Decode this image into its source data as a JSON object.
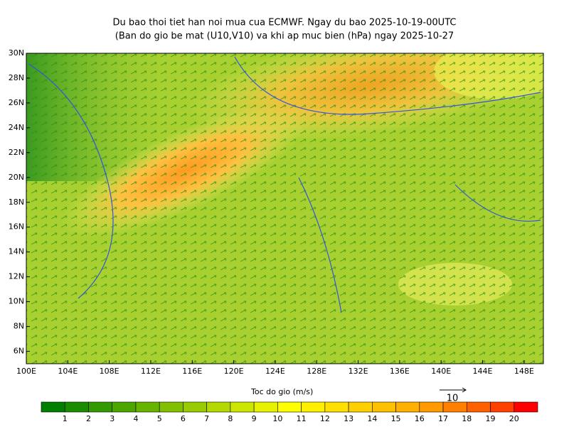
{
  "title": [
    "Du bao thoi tiet han noi mua cua ECMWF. Ngay du bao 2025-10-19-00UTC",
    "(Ban do gio be mat (U10,V10) va khi ap muc bien (hPa) ngay 2025-10-27"
  ],
  "map": {
    "lon_range": [
      100,
      150
    ],
    "lat_range": [
      5,
      30
    ],
    "xticks": [
      {
        "value": 100,
        "label": "100E"
      },
      {
        "value": 104,
        "label": "104E"
      },
      {
        "value": 108,
        "label": "108E"
      },
      {
        "value": 112,
        "label": "112E"
      },
      {
        "value": 116,
        "label": "116E"
      },
      {
        "value": 120,
        "label": "120E"
      },
      {
        "value": 124,
        "label": "124E"
      },
      {
        "value": 128,
        "label": "128E"
      },
      {
        "value": 132,
        "label": "132E"
      },
      {
        "value": 136,
        "label": "136E"
      },
      {
        "value": 140,
        "label": "140E"
      },
      {
        "value": 144,
        "label": "144E"
      },
      {
        "value": 148,
        "label": "148E"
      }
    ],
    "yticks": [
      {
        "value": 6,
        "label": "6N"
      },
      {
        "value": 8,
        "label": "8N"
      },
      {
        "value": 10,
        "label": "10N"
      },
      {
        "value": 12,
        "label": "12N"
      },
      {
        "value": 14,
        "label": "14N"
      },
      {
        "value": 16,
        "label": "16N"
      },
      {
        "value": 18,
        "label": "18N"
      },
      {
        "value": 20,
        "label": "20N"
      },
      {
        "value": 22,
        "label": "22N"
      },
      {
        "value": 24,
        "label": "24N"
      },
      {
        "value": 26,
        "label": "26N"
      },
      {
        "value": 28,
        "label": "28N"
      },
      {
        "value": 30,
        "label": "30N"
      }
    ]
  },
  "colorbar": {
    "title": "Toc do gio (m/s)",
    "labels": [
      1,
      2,
      3,
      4,
      5,
      6,
      7,
      8,
      9,
      10,
      11,
      12,
      13,
      14,
      15,
      16,
      17,
      18,
      19,
      20
    ],
    "colors": [
      "#007f00",
      "#1a8c00",
      "#339900",
      "#4da600",
      "#66b300",
      "#80c000",
      "#99cc00",
      "#b3d900",
      "#cce600",
      "#e6f200",
      "#ffff00",
      "#fff000",
      "#ffe000",
      "#ffd000",
      "#ffc000",
      "#ffb000",
      "#ff9a00",
      "#ff8000",
      "#ff6000",
      "#ff4000",
      "#ff0000"
    ]
  },
  "reference_vector": {
    "label": "10"
  }
}
